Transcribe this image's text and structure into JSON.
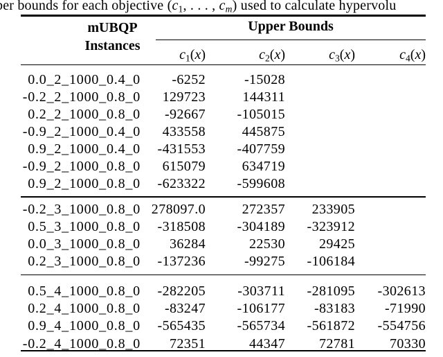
{
  "caption": "ber bounds for each objective (c_1, . . . , c_m) used to calculate hypervolu",
  "table": {
    "header": {
      "instances_line1": "mUBQP",
      "instances_line2": "Instances",
      "upper_bounds": "Upper Bounds",
      "columns": [
        "c_1(x)",
        "c_2(x)",
        "c_3(x)",
        "c_4(x)"
      ]
    },
    "groups": [
      {
        "rows": [
          {
            "label": "0.0_2_1000_0.4_0",
            "c1": "-6252",
            "c2": "-15028"
          },
          {
            "label": "-0.2_2_1000_0.8_0",
            "c1": "129723",
            "c2": "144311"
          },
          {
            "label": "0.2_2_1000_0.8_0",
            "c1": "-92667",
            "c2": "-105015"
          },
          {
            "label": "-0.9_2_1000_0.4_0",
            "c1": "433558",
            "c2": "445875"
          },
          {
            "label": "0.9_2_1000_0.4_0",
            "c1": "-431553",
            "c2": "-407759"
          },
          {
            "label": "-0.9_2_1000_0.8_0",
            "c1": "615079",
            "c2": "634719"
          },
          {
            "label": "0.9_2_1000_0.8_0",
            "c1": "-623322",
            "c2": "-599608"
          }
        ]
      },
      {
        "rows": [
          {
            "label": "-0.2_3_1000_0.8_0",
            "c1": "278097.0",
            "c2": "272357",
            "c3": "233905"
          },
          {
            "label": "0.5_3_1000_0.8_0",
            "c1": "-318508",
            "c2": "-304189",
            "c3": "-323912"
          },
          {
            "label": "0.0_3_1000_0.8_0",
            "c1": "36284",
            "c2": "22530",
            "c3": "29425"
          },
          {
            "label": "0.2_3_1000_0.8_0",
            "c1": "-137236",
            "c2": "-99275",
            "c3": "-106184"
          }
        ]
      },
      {
        "rows": [
          {
            "label": "0.5_4_1000_0.8_0",
            "c1": "-282205",
            "c2": "-303711",
            "c3": "-281095",
            "c4": "-302613"
          },
          {
            "label": "0.2_4_1000_0.8_0",
            "c1": "-83247",
            "c2": "-106177",
            "c3": "-83183",
            "c4": "-71990"
          },
          {
            "label": "0.9_4_1000_0.8_0",
            "c1": "-565435",
            "c2": "-565734",
            "c3": "-561872",
            "c4": "-554756"
          },
          {
            "label": "-0.2_4_1000_0.8_0",
            "c1": "72351",
            "c2": "44347",
            "c3": "72781",
            "c4": "70330"
          }
        ]
      }
    ]
  }
}
